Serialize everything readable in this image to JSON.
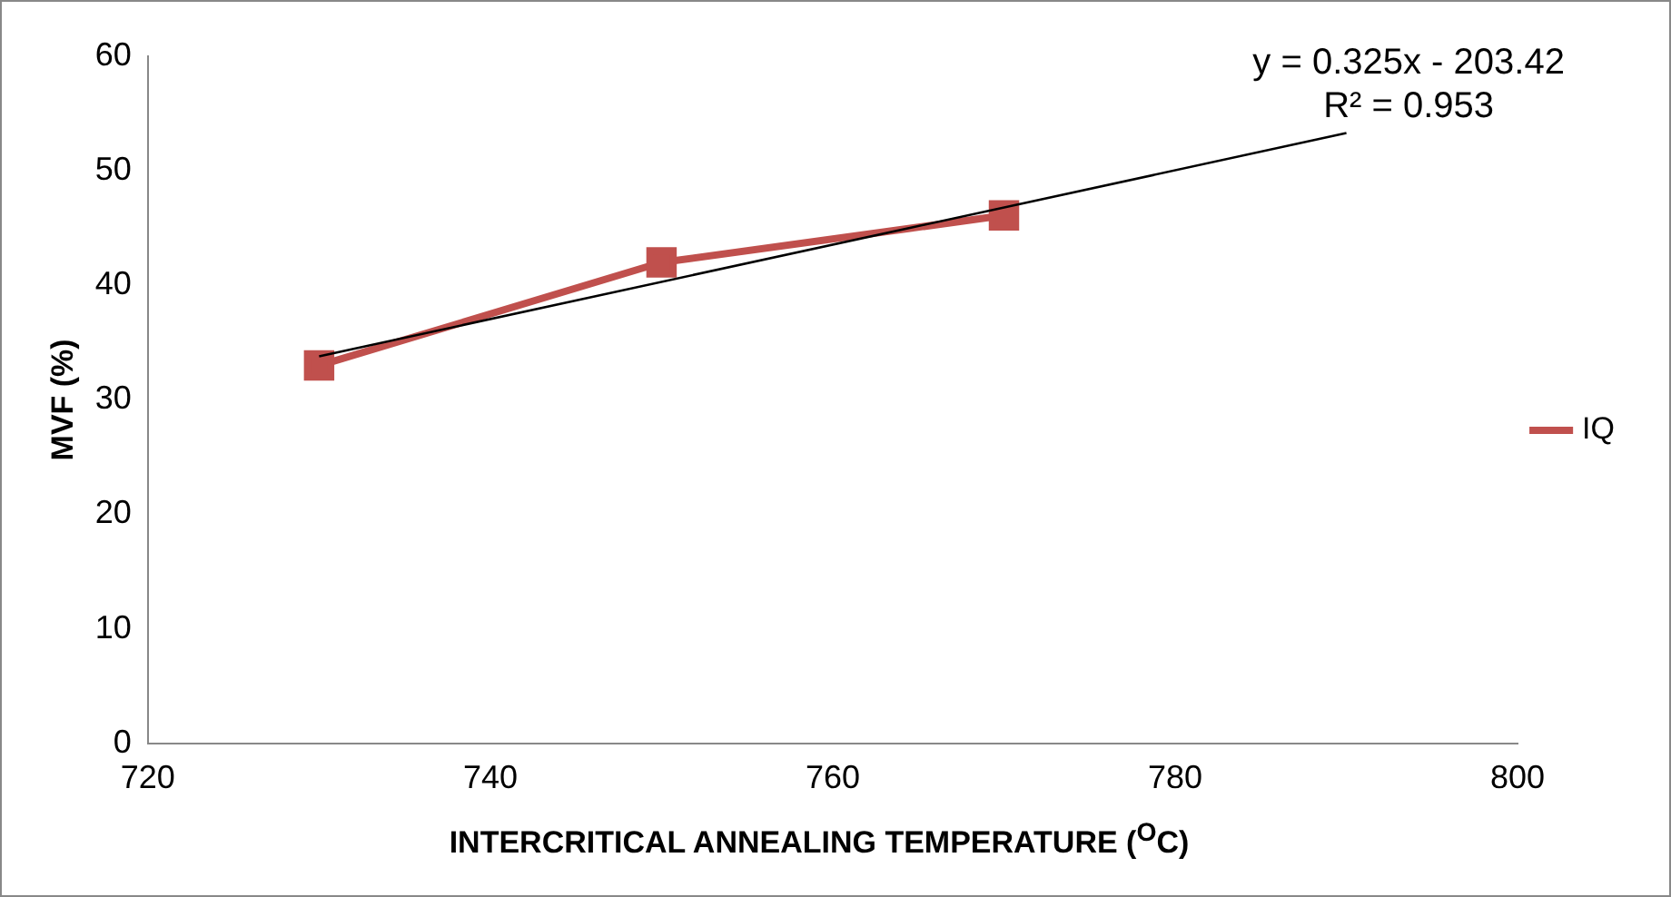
{
  "chart_data": {
    "type": "line",
    "xlabel": "INTERCRITICAL ANNEALING TEMPERATURE ($^{O}$C)",
    "ylabel": "MVF (%)",
    "x": [
      730,
      750,
      770
    ],
    "series": [
      {
        "name": "IQ",
        "color": "#c0504d",
        "values": [
          33,
          42,
          46.1
        ],
        "marker": "square"
      },
      {
        "color": "#000000",
        "x": [
          730,
          790
        ],
        "values": [
          33.8,
          53.3
        ],
        "marker": "none"
      }
    ],
    "xlim": [
      720,
      800
    ],
    "xticks": [
      720,
      740,
      760,
      780,
      800
    ],
    "ylim": [
      0,
      60
    ],
    "yticks": [
      0,
      10,
      20,
      30,
      40,
      50,
      60
    ],
    "grid": false,
    "legend": "right",
    "annotations": [
      "y = 0.325x - 203.42",
      "R² = 0.953"
    ]
  }
}
